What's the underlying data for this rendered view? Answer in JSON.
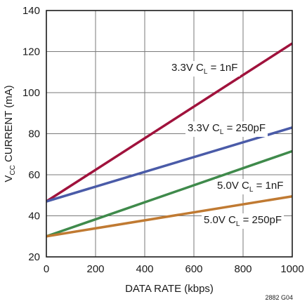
{
  "chart_data": {
    "type": "line",
    "xlabel": "DATA RATE (kbps)",
    "ylabel": {
      "prefix": "V",
      "subscript": "CC",
      "suffix": " CURRENT (mA)"
    },
    "xlim": [
      0,
      1000
    ],
    "ylim": [
      20,
      140
    ],
    "x_ticks": [
      "0",
      "200",
      "400",
      "600",
      "800",
      "1000"
    ],
    "y_ticks": [
      "20",
      "40",
      "60",
      "80",
      "100",
      "120",
      "140"
    ],
    "grid": true,
    "series": [
      {
        "label": {
          "prefix": "3.3V C",
          "subscript": "L",
          "suffix": " = 1nF"
        },
        "color": "#a0123c",
        "x": [
          0,
          1000
        ],
        "y": [
          47,
          124
        ]
      },
      {
        "label": {
          "prefix": "3.3V C",
          "subscript": "L",
          "suffix": " = 250pF"
        },
        "color": "#4a5ba8",
        "x": [
          0,
          1000
        ],
        "y": [
          47,
          83
        ]
      },
      {
        "label": {
          "prefix": "5.0V C",
          "subscript": "L",
          "suffix": " = 1nF"
        },
        "color": "#3f8a4b",
        "x": [
          0,
          1000
        ],
        "y": [
          30,
          71.5
        ]
      },
      {
        "label": {
          "prefix": "5.0V C",
          "subscript": "L",
          "suffix": " = 250pF"
        },
        "color": "#c07a32",
        "x": [
          0,
          1000
        ],
        "y": [
          30,
          49.5
        ]
      }
    ]
  },
  "figure_id": "2882 G04"
}
